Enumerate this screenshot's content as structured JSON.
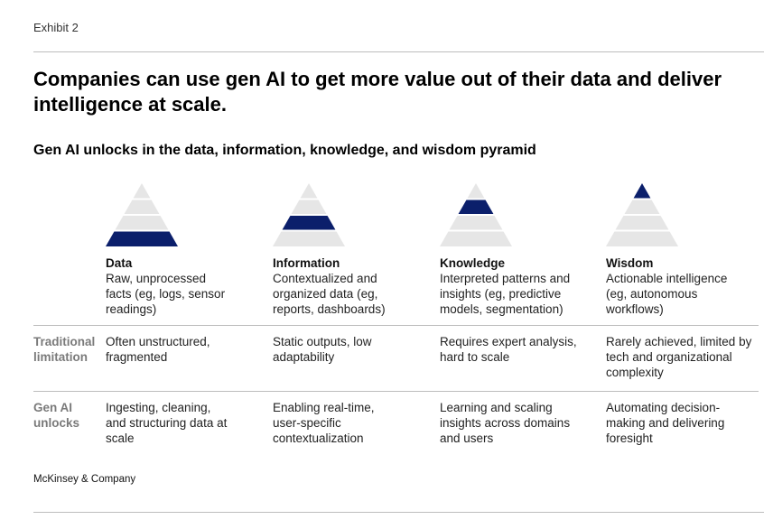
{
  "exhibit": "Exhibit 2",
  "title": "Companies can use gen AI to get more value out of their data and deliver intelligence at scale.",
  "subtitle": "Gen AI unlocks in the data, information, knowledge, and wisdom pyramid",
  "colors": {
    "highlight": "#0b1f6b",
    "light": "#e6e6e6",
    "rule": "#bdbdbd",
    "row_label": "#7a7a7a"
  },
  "columns": [
    {
      "heading": "Data",
      "description": "Raw, unprocessed facts (eg, logs, sensor readings)",
      "highlight_level": "bottom"
    },
    {
      "heading": "Information",
      "description": "Contextualized and organized data (eg, reports, dashboards)",
      "highlight_level": "lower-middle"
    },
    {
      "heading": "Knowledge",
      "description": "Interpreted patterns and insights (eg, predictive models, segmentation)",
      "highlight_level": "upper-middle"
    },
    {
      "heading": "Wisdom",
      "description": "Actionable intelligence (eg, autonomous workflows)",
      "highlight_level": "top"
    }
  ],
  "rows": [
    {
      "label": "Traditional limitation",
      "cells": [
        "Often unstructured, fragmented",
        "Static outputs, low adaptability",
        "Requires expert analysis, hard to scale",
        "Rarely achieved, limited by tech and organizational complexity"
      ]
    },
    {
      "label": "Gen AI unlocks",
      "cells": [
        "Ingesting, cleaning, and structuring data at scale",
        "Enabling real-time, user-specific contextualization",
        "Learning and scaling insights across domains and users",
        "Automating decision-making and delivering foresight"
      ]
    }
  ],
  "footer": "McKinsey & Company"
}
